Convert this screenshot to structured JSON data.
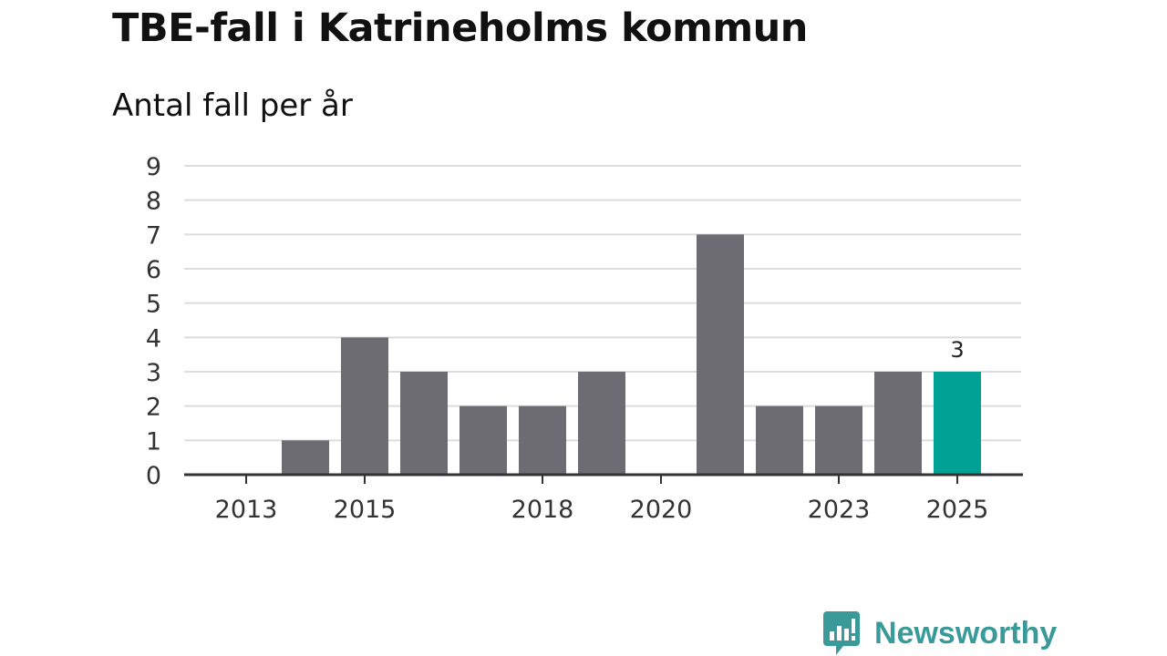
{
  "header": {
    "title": "TBE-fall i Katrineholms kommun",
    "subtitle": "Antal fall per år"
  },
  "brand": {
    "name": "Newsworthy",
    "color": "#3a9a9a",
    "icon": "newsworthy-logo-icon"
  },
  "colors": {
    "bar": "#6d6c72",
    "highlight": "#00a296",
    "grid": "#dcdcdc",
    "axis": "#333333"
  },
  "chart_data": {
    "type": "bar",
    "title": "TBE-fall i Katrineholms kommun",
    "subtitle": "Antal fall per år",
    "xlabel": "",
    "ylabel": "",
    "categories": [
      "2013",
      "2014",
      "2015",
      "2016",
      "2017",
      "2018",
      "2019",
      "2020",
      "2021",
      "2022",
      "2023",
      "2024",
      "2025"
    ],
    "values": [
      0,
      1,
      4,
      3,
      2,
      2,
      3,
      0,
      7,
      2,
      2,
      3,
      3
    ],
    "x_tick_labels": [
      "2013",
      "2015",
      "2018",
      "2020",
      "2023",
      "2025"
    ],
    "y_ticks": [
      0,
      1,
      2,
      3,
      4,
      5,
      6,
      7,
      8,
      9
    ],
    "ylim": [
      0,
      9
    ],
    "grid": true,
    "highlight_category": "2025",
    "data_labels": [
      {
        "category": "2025",
        "text": "3"
      }
    ]
  }
}
